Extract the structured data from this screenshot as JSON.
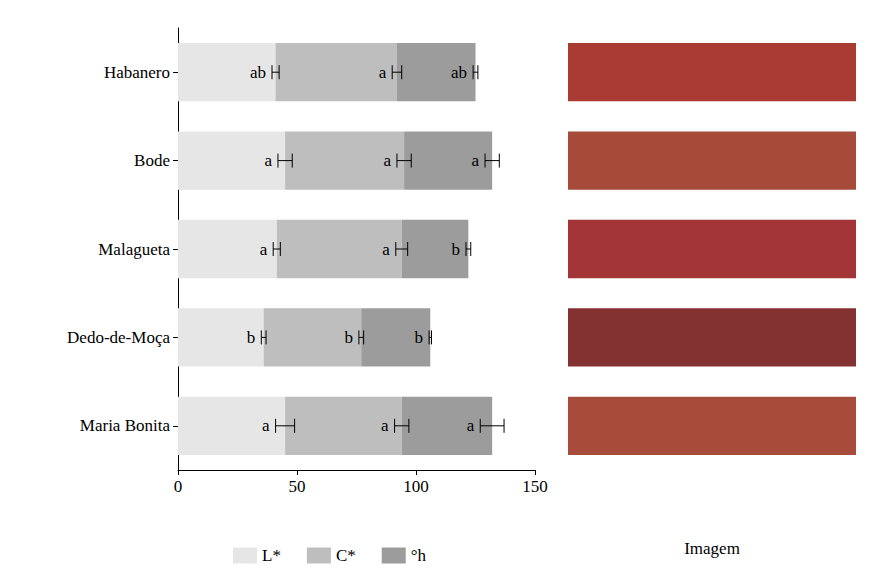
{
  "chart_data": [
    {
      "type": "bar",
      "orientation": "horizontal",
      "stacked": true,
      "legend": "bottom",
      "grid": false,
      "categories": [
        "Habanero",
        "Bode",
        "Malagueta",
        "Dedo-de-Moça",
        "Maria Bonita"
      ],
      "xlim": [
        0,
        150
      ],
      "xticks": [
        0,
        50,
        100,
        150
      ],
      "series": [
        {
          "name": "L*",
          "color": "#e6e6e6",
          "values": [
            41,
            45,
            41.5,
            36,
            45
          ],
          "errors": [
            1.5,
            3,
            1.5,
            1,
            4
          ],
          "letters": [
            "ab",
            "a",
            "a",
            "b",
            "a"
          ]
        },
        {
          "name": "C*",
          "color": "#bebebe",
          "values": [
            51,
            50,
            52.5,
            41,
            49
          ],
          "errors": [
            2,
            3,
            2.5,
            1,
            3
          ],
          "letters": [
            "a",
            "a",
            "a",
            "b",
            "a"
          ]
        },
        {
          "name": "°h",
          "color": "#9c9c9c",
          "values": [
            33,
            37,
            28,
            29,
            38
          ],
          "errors": [
            1,
            3,
            1,
            0.5,
            5
          ],
          "letters": [
            "ab",
            "a",
            "b",
            "b",
            "a"
          ]
        }
      ]
    },
    {
      "type": "swatch",
      "xlabel": "Imagem",
      "categories": [
        "Habanero",
        "Bode",
        "Malagueta",
        "Dedo-de-Moça",
        "Maria Bonita"
      ],
      "colors": [
        "#a93b33",
        "#a64b3a",
        "#a43536",
        "#843131",
        "#a74b3a"
      ]
    }
  ]
}
